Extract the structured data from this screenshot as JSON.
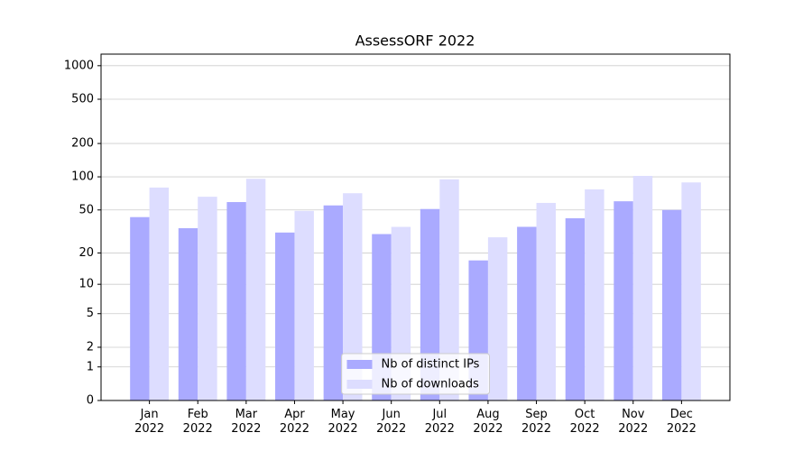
{
  "chart_data": {
    "type": "bar",
    "title": "AssessORF 2022",
    "scale": "log1p",
    "categories": [
      "Jan\n2022",
      "Feb\n2022",
      "Mar\n2022",
      "Apr\n2022",
      "May\n2022",
      "Jun\n2022",
      "Jul\n2022",
      "Aug\n2022",
      "Sep\n2022",
      "Oct\n2022",
      "Nov\n2022",
      "Dec\n2022"
    ],
    "series": [
      {
        "name": "Nb of distinct IPs",
        "color": "#aaaaff",
        "values": [
          43,
          34,
          59,
          31,
          55,
          30,
          51,
          17,
          35,
          42,
          60,
          50
        ]
      },
      {
        "name": "Nb of downloads",
        "color": "#ddddff",
        "values": [
          80,
          66,
          96,
          49,
          71,
          35,
          95,
          28,
          58,
          77,
          102,
          89
        ]
      }
    ],
    "ylim": [
      0,
      1270
    ],
    "yticks": [
      0,
      1,
      2,
      5,
      10,
      20,
      50,
      100,
      200,
      500,
      1000
    ],
    "grid": true,
    "legend": "lower center"
  }
}
